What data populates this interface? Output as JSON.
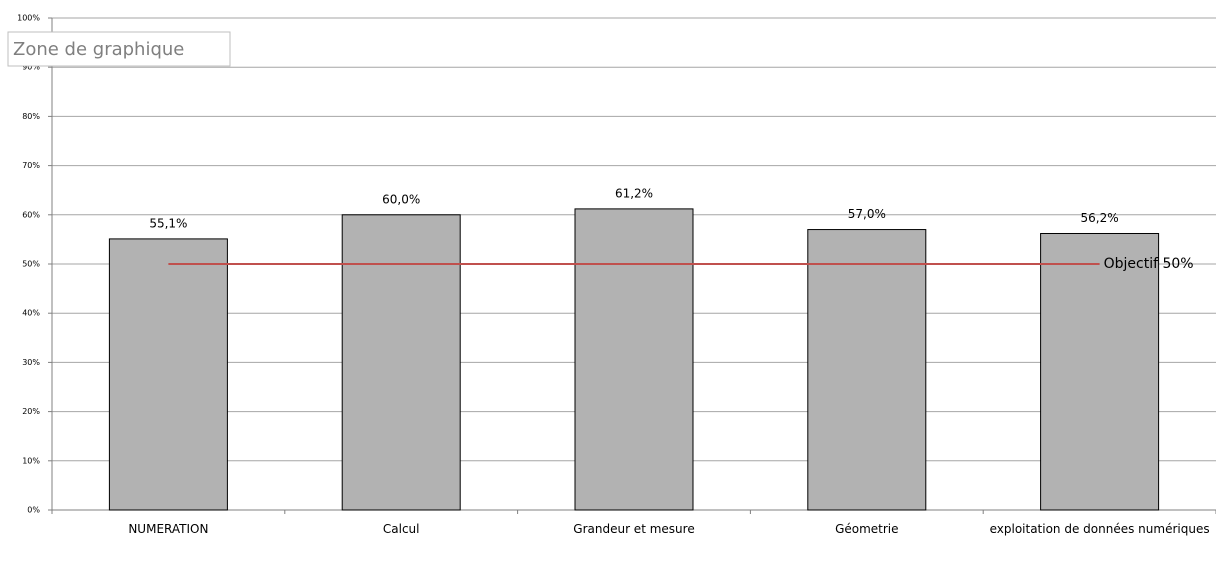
{
  "chart_data": {
    "type": "bar",
    "tooltip": "Zone de graphique",
    "categories": [
      "NUMERATION",
      "Calcul",
      "Grandeur et mesure",
      "Géometrie",
      "exploitation de données numériques"
    ],
    "values": [
      55.1,
      60.0,
      61.2,
      57.0,
      56.2
    ],
    "value_labels": [
      "55,1%",
      "60,0%",
      "61,2%",
      "57,0%",
      "56,2%"
    ],
    "color": "#b2b2b2",
    "ylim": [
      0,
      100
    ],
    "yticks": [
      {
        "value": 0,
        "label": "0%"
      },
      {
        "value": 10,
        "label": "10%"
      },
      {
        "value": 20,
        "label": "20%"
      },
      {
        "value": 30,
        "label": "30%"
      },
      {
        "value": 40,
        "label": "40%"
      },
      {
        "value": 50,
        "label": "50%"
      },
      {
        "value": 60,
        "label": "60%"
      },
      {
        "value": 70,
        "label": "70%"
      },
      {
        "value": 80,
        "label": "80%"
      },
      {
        "value": 90,
        "label": "90%"
      },
      {
        "value": 100,
        "label": "100%"
      }
    ],
    "grid": true,
    "objective": {
      "value": 50,
      "label": "Objectif 50%",
      "color": "#c0504d"
    }
  }
}
